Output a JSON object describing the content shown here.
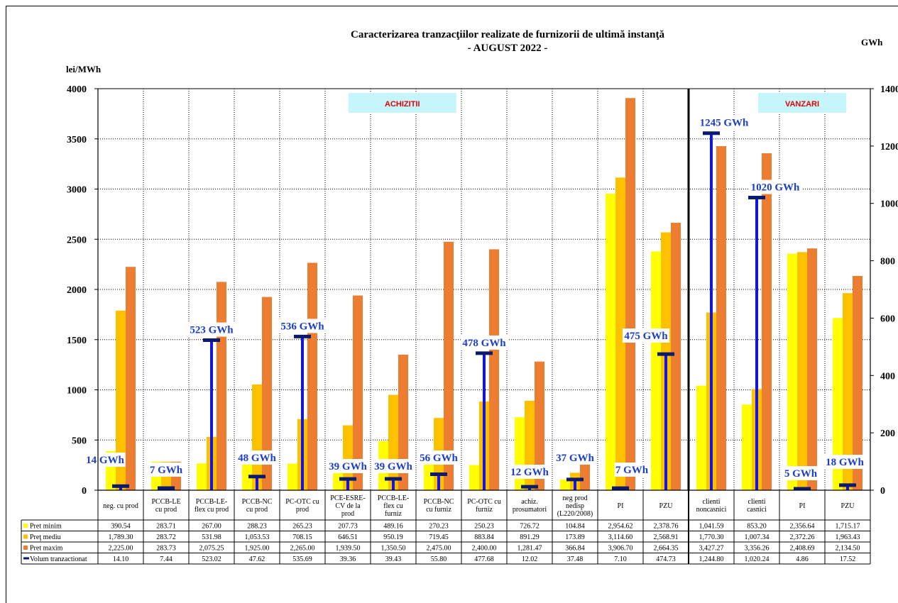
{
  "chart_data": {
    "type": "bar",
    "title_line1": "Caracterizarea tranzacţiilor realizate de furnizorii de ultimă instanţă",
    "title_line2": "- AUGUST 2022 -",
    "y_left_label": "lei/MWh",
    "y_right_label": "GWh",
    "ylim_left": [
      0,
      4000
    ],
    "ylim_right": [
      0,
      1400
    ],
    "y_left_ticks": [
      "0",
      "500",
      "1000",
      "1500",
      "2000",
      "2500",
      "3000",
      "3500",
      "4000"
    ],
    "y_right_ticks": [
      "0",
      "200",
      "400",
      "600",
      "800",
      "1000",
      "1200",
      "1400"
    ],
    "sections": [
      {
        "label": "ACHIZITII",
        "start": 0,
        "end": 12
      },
      {
        "label": "VANZARI",
        "start": 13,
        "end": 16
      }
    ],
    "categories": [
      [
        "neg. cu prod"
      ],
      [
        "PCCB-LE",
        "cu prod"
      ],
      [
        "PCCB-LE-",
        "flex cu prod"
      ],
      [
        "PCCB-NC",
        "cu prod"
      ],
      [
        "PC-OTC cu",
        "prod"
      ],
      [
        "PCE-ESRE-",
        "CV de la",
        "prod"
      ],
      [
        "PCCB-LE-",
        "flex cu",
        "furniz"
      ],
      [
        "PCCB-NC",
        "cu furniz"
      ],
      [
        "PC-OTC cu",
        "furniz"
      ],
      [
        "achiz.",
        "prosumatori"
      ],
      [
        "neg prod",
        "nedisp",
        "(L220/2008)"
      ],
      [
        "PI"
      ],
      [
        "PZU"
      ],
      [
        "clienti",
        "noncasnici"
      ],
      [
        "clienti",
        "casnici"
      ],
      [
        "PI"
      ],
      [
        "PZU"
      ]
    ],
    "series": [
      {
        "name": "Pret minim",
        "color": "#ffff00",
        "axis": "left",
        "values": [
          390.54,
          283.71,
          267.0,
          288.23,
          265.23,
          207.73,
          489.16,
          270.23,
          250.23,
          726.72,
          104.84,
          2954.62,
          2378.76,
          1041.59,
          853.2,
          2356.64,
          1715.17
        ],
        "display": [
          "390.54",
          "283.71",
          "267.00",
          "288.23",
          "265.23",
          "207.73",
          "489.16",
          "270.23",
          "250.23",
          "726.72",
          "104.84",
          "2,954.62",
          "2,378.76",
          "1,041.59",
          "853.20",
          "2,356.64",
          "1,715.17"
        ]
      },
      {
        "name": "Preţ mediu",
        "color": "#ffc000",
        "axis": "left",
        "values": [
          1789.3,
          283.72,
          531.98,
          1053.53,
          708.15,
          646.51,
          950.19,
          719.45,
          883.84,
          891.29,
          173.89,
          3114.6,
          2568.91,
          1770.3,
          1007.34,
          2372.26,
          1963.43
        ],
        "display": [
          "1,789.30",
          "283.72",
          "531.98",
          "1,053.53",
          "708.15",
          "646.51",
          "950.19",
          "719.45",
          "883.84",
          "891.29",
          "173.89",
          "3,114.60",
          "2,568.91",
          "1,770.30",
          "1,007.34",
          "2,372.26",
          "1,963.43"
        ]
      },
      {
        "name": "Pret maxim",
        "color": "#ed7d31",
        "axis": "left",
        "values": [
          2225.0,
          283.73,
          2075.25,
          1925.0,
          2265.0,
          1939.5,
          1350.5,
          2475.0,
          2400.0,
          1281.47,
          366.84,
          3906.7,
          2664.35,
          3427.27,
          3356.26,
          2408.69,
          2134.5
        ],
        "display": [
          "2,225.00",
          "283.73",
          "2,075.25",
          "1,925.00",
          "2,265.00",
          "1,939.50",
          "1,350.50",
          "2,475.00",
          "2,400.00",
          "1,281.47",
          "366.84",
          "3,906.70",
          "2,664.35",
          "3,427.27",
          "3,356.26",
          "2,408.69",
          "2,134.50"
        ]
      },
      {
        "name": "Volum tranzactionat",
        "color": "#1414e0",
        "axis": "right",
        "values": [
          14.1,
          7.44,
          523.02,
          47.62,
          535.69,
          39.36,
          39.43,
          55.8,
          477.68,
          12.02,
          37.48,
          7.1,
          474.73,
          1244.8,
          1020.24,
          4.86,
          17.52
        ],
        "display": [
          "14.10",
          "7.44",
          "523.02",
          "47.62",
          "535.69",
          "39.36",
          "39.43",
          "55.80",
          "477.68",
          "12.02",
          "37.48",
          "7.10",
          "474.73",
          "1,244.80",
          "1,020.24",
          "4.86",
          "17.52"
        ],
        "labels": [
          "14 GWh",
          "7 GWh",
          "523 GWh",
          "48 GWh",
          "536 GWh",
          "39 GWh",
          "39 GWh",
          "56 GWh",
          "478 GWh",
          "12 GWh",
          "37 GWh",
          "7 GWh",
          "475 GWh",
          "1245 GWh",
          "1020 GWh",
          "5 GWh",
          "18 GWh"
        ]
      }
    ]
  }
}
